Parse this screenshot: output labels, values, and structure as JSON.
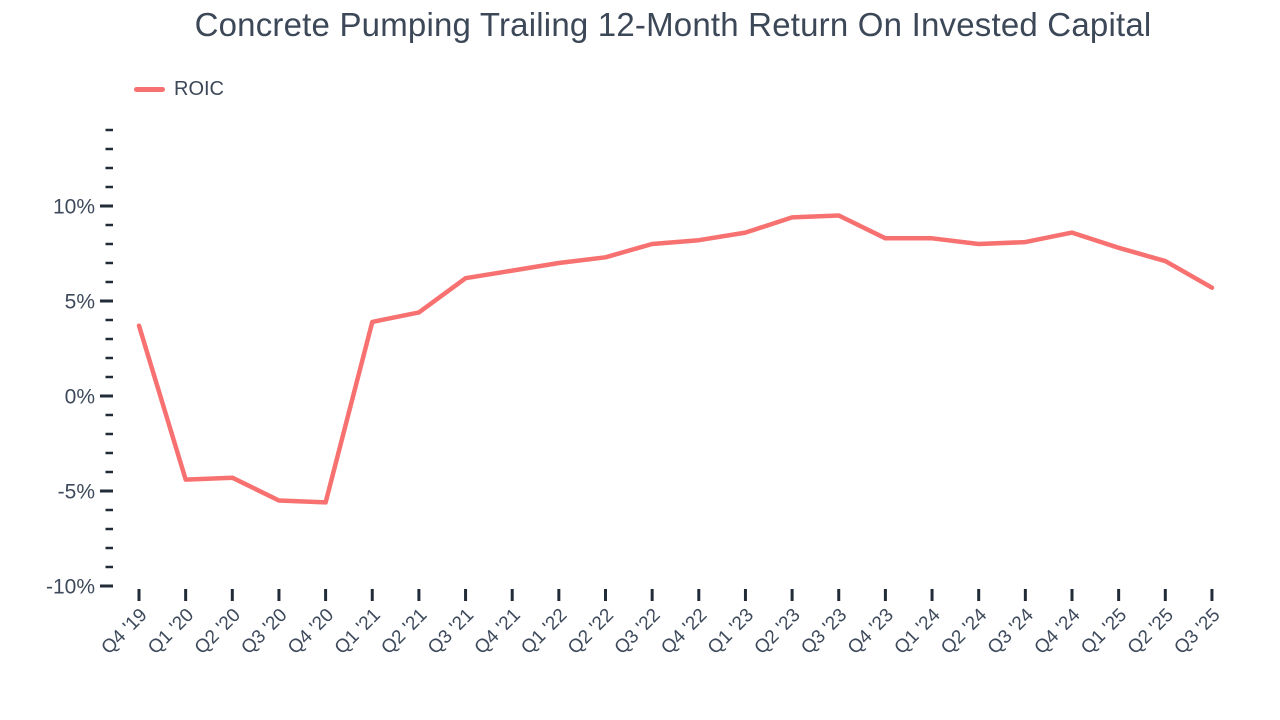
{
  "chart_data": {
    "type": "line",
    "title": "Concrete Pumping Trailing 12-Month Return On Invested Capital",
    "legend_position": "top-left",
    "grid": "off",
    "categories": [
      "Q4 '19",
      "Q1 '20",
      "Q2 '20",
      "Q3 '20",
      "Q4 '20",
      "Q1 '21",
      "Q2 '21",
      "Q3 '21",
      "Q4 '21",
      "Q1 '22",
      "Q2 '22",
      "Q3 '22",
      "Q4 '22",
      "Q1 '23",
      "Q2 '23",
      "Q3 '23",
      "Q4 '23",
      "Q1 '24",
      "Q2 '24",
      "Q3 '24",
      "Q4 '24",
      "Q1 '25",
      "Q2 '25",
      "Q3 '25"
    ],
    "series": [
      {
        "name": "ROIC",
        "color": "#f87171",
        "values": [
          3.7,
          -4.4,
          -4.3,
          -5.5,
          -5.6,
          3.9,
          4.4,
          6.2,
          6.6,
          7.0,
          7.3,
          8.0,
          8.2,
          8.6,
          9.4,
          9.5,
          8.3,
          8.3,
          8.0,
          8.1,
          8.6,
          7.8,
          7.1,
          5.7
        ]
      }
    ],
    "axes": {
      "y_unit": "%",
      "y_min": -10,
      "y_max": 14,
      "y_major_step": 5,
      "y_minor_step": 1,
      "y_major_labels": [
        "10%",
        "5%",
        "0%",
        "-5%",
        "-10%"
      ],
      "x_tick_count": 24
    },
    "colors": {
      "line": "#f87171",
      "text": "#3e4a5c",
      "title_text": "#3c4858",
      "tick": "#222b38",
      "background": "#ffffff"
    }
  }
}
